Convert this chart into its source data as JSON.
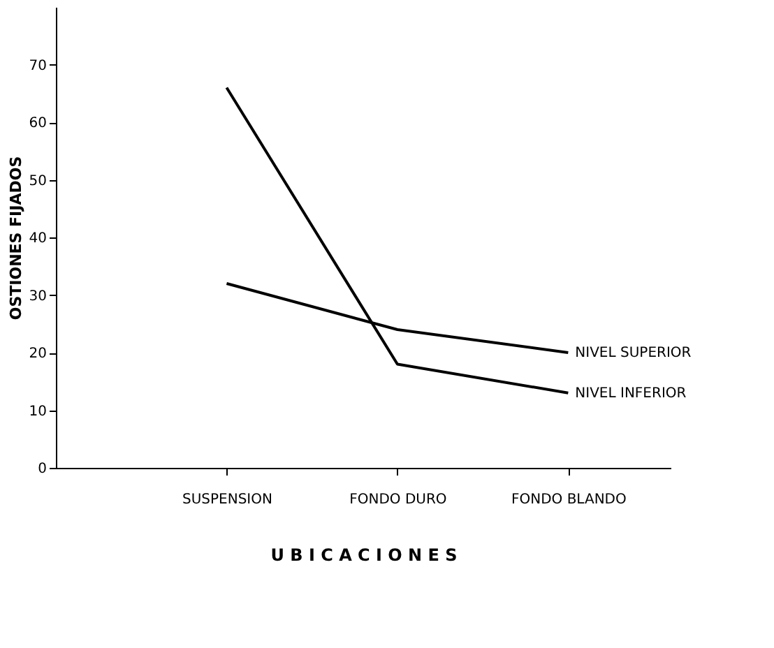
{
  "chart_data": {
    "type": "line",
    "xlabel": "U B I C A C I O N E S",
    "ylabel": "OSTIONES FIJADOS",
    "categories": [
      "SUSPENSION",
      "FONDO DURO",
      "FONDO BLANDO"
    ],
    "series": [
      {
        "name": "NIVEL SUPERIOR",
        "color": "#000000",
        "values": [
          32,
          24,
          20
        ]
      },
      {
        "name": "NIVEL INFERIOR",
        "color": "#000000",
        "values": [
          66,
          18,
          13
        ]
      }
    ],
    "ylim": [
      0,
      80
    ],
    "yticks": [
      0,
      10,
      20,
      30,
      40,
      50,
      60,
      70
    ],
    "grid": false,
    "legend": false,
    "marker": "none",
    "line_style": "solid"
  }
}
